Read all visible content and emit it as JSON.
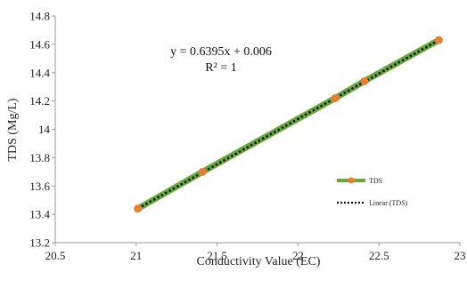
{
  "chart_data": {
    "type": "scatter",
    "xlabel": "Conductivity Value (EC)",
    "ylabel": "TDS (Mg/L)",
    "xlim": [
      20.5,
      23
    ],
    "ylim": [
      13.2,
      14.8
    ],
    "xticks": [
      "20.5",
      "21",
      "21.5",
      "22",
      "22.5",
      "23"
    ],
    "yticks": [
      "13.2",
      "13.4",
      "13.6",
      "13.8",
      "14",
      "14.2",
      "14.4",
      "14.6",
      "14.8"
    ],
    "grid": false,
    "legend_position": "right",
    "series": [
      {
        "name": "TDS",
        "kind": "line-with-markers",
        "color": "#6aaa3a",
        "marker_color": "#ed7d31",
        "x": [
          21.01,
          21.41,
          22.23,
          22.41,
          22.87
        ],
        "y": [
          13.44,
          13.7,
          14.22,
          14.34,
          14.63
        ]
      },
      {
        "name": "Linear (TDS)",
        "kind": "trendline",
        "color": "#111111",
        "style": "dotted",
        "x": [
          21.01,
          22.87
        ],
        "y": [
          13.44,
          14.63
        ]
      }
    ],
    "annotations": [
      "y = 0.6395x + 0.006",
      "R² = 1"
    ]
  }
}
